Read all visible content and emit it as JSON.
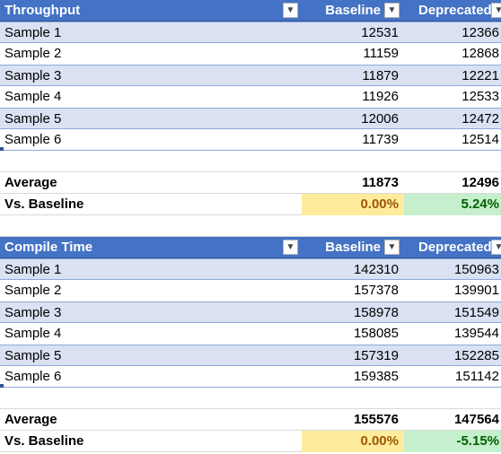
{
  "tables": [
    {
      "header": {
        "metric": "Throughput",
        "col1": "Baseline",
        "col2": "Deprecated"
      },
      "samples": [
        {
          "label": "Sample 1",
          "baseline": "12531",
          "deprecated": "12366"
        },
        {
          "label": "Sample 2",
          "baseline": "11159",
          "deprecated": "12868"
        },
        {
          "label": "Sample 3",
          "baseline": "11879",
          "deprecated": "12221"
        },
        {
          "label": "Sample 4",
          "baseline": "11926",
          "deprecated": "12533"
        },
        {
          "label": "Sample 5",
          "baseline": "12006",
          "deprecated": "12472"
        },
        {
          "label": "Sample 6",
          "baseline": "11739",
          "deprecated": "12514"
        }
      ],
      "average": {
        "label": "Average",
        "baseline": "11873",
        "deprecated": "12496"
      },
      "vs": {
        "label": "Vs. Baseline",
        "baseline": "0.00%",
        "deprecated": "5.24%"
      }
    },
    {
      "header": {
        "metric": "Compile Time",
        "col1": "Baseline",
        "col2": "Deprecated"
      },
      "samples": [
        {
          "label": "Sample 1",
          "baseline": "142310",
          "deprecated": "150963"
        },
        {
          "label": "Sample 2",
          "baseline": "157378",
          "deprecated": "139901"
        },
        {
          "label": "Sample 3",
          "baseline": "158978",
          "deprecated": "151549"
        },
        {
          "label": "Sample 4",
          "baseline": "158085",
          "deprecated": "139544"
        },
        {
          "label": "Sample 5",
          "baseline": "157319",
          "deprecated": "152285"
        },
        {
          "label": "Sample 6",
          "baseline": "159385",
          "deprecated": "151142"
        }
      ],
      "average": {
        "label": "Average",
        "baseline": "155576",
        "deprecated": "147564"
      },
      "vs": {
        "label": "Vs. Baseline",
        "baseline": "0.00%",
        "deprecated": "-5.15%"
      }
    }
  ],
  "icons": {
    "filter_dropdown": "dropdown-arrow-icon"
  },
  "colors": {
    "header": "#4472c4",
    "band": "#d9e1f2",
    "neutral_fill": "#ffeb9c",
    "positive_fill": "#c6efce"
  }
}
